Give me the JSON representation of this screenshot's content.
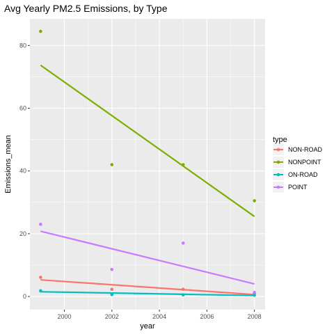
{
  "chart_data": {
    "type": "scatter",
    "title": "Avg Yearly PM2.5 Emissions, by Type",
    "xlabel": "year",
    "ylabel": "Emissions_mean",
    "xlim": [
      1998.55,
      2008.45
    ],
    "ylim": [
      -4.2,
      88.5
    ],
    "x_ticks": [
      2000,
      2002,
      2004,
      2006,
      2008
    ],
    "y_ticks": [
      0,
      20,
      40,
      60,
      80
    ],
    "grid": true,
    "legend": {
      "title": "type",
      "position": "right"
    },
    "x": [
      1999,
      2002,
      2005,
      2008
    ],
    "series": [
      {
        "name": "NON-ROAD",
        "color": "#F8766D",
        "values": [
          6.1,
          2.3,
          2.3,
          1.0
        ],
        "trend": [
          5.3,
          0.6
        ]
      },
      {
        "name": "NONPOINT",
        "color": "#7CAE00",
        "values": [
          84.5,
          42.0,
          42.0,
          30.5
        ],
        "trend": [
          73.7,
          25.5
        ]
      },
      {
        "name": "ON-ROAD",
        "color": "#00BFC4",
        "values": [
          1.8,
          0.6,
          0.5,
          0.4
        ],
        "trend": [
          1.5,
          0.3
        ]
      },
      {
        "name": "POINT",
        "color": "#C77CFF",
        "values": [
          23.0,
          8.6,
          17.0,
          1.3
        ],
        "trend": [
          20.8,
          4.0
        ]
      }
    ]
  }
}
